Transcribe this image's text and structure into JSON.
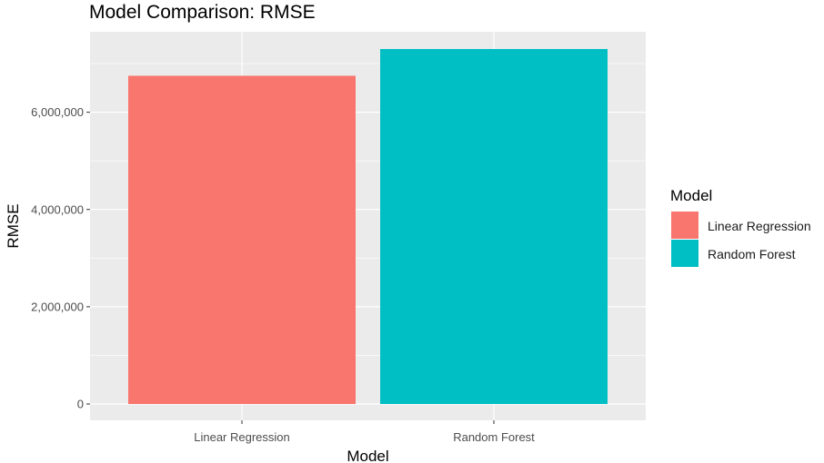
{
  "chart_data": {
    "type": "bar",
    "title": "Model Comparison: RMSE",
    "xlabel": "Model",
    "ylabel": "RMSE",
    "categories": [
      "Linear Regression",
      "Random Forest"
    ],
    "values": [
      6750000,
      7300000
    ],
    "colors": [
      "#F8766D",
      "#00BFC4"
    ],
    "ylim": [
      0,
      7300000
    ],
    "yticks": [
      0,
      2000000,
      4000000,
      6000000
    ],
    "ytick_labels": [
      "0",
      "2,000,000",
      "4,000,000",
      "6,000,000"
    ],
    "grid": true,
    "legend": {
      "title": "Model",
      "position": "right",
      "entries": [
        "Linear Regression",
        "Random Forest"
      ]
    },
    "panel_color": "#EBEBEB",
    "grid_color": "#FFFFFF"
  }
}
